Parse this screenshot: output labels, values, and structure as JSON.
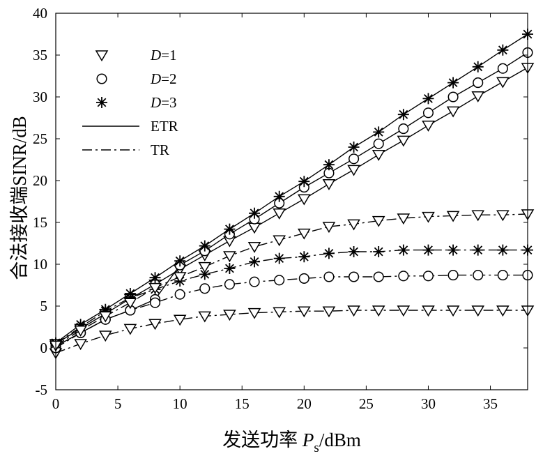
{
  "chart_data": {
    "type": "line",
    "xlabel": {
      "text": "发送功率 ",
      "var": "P",
      "sub": "s",
      "unit": "/dBm"
    },
    "ylabel": "合法接收端SINR/dB",
    "xlim": [
      0,
      38
    ],
    "ylim": [
      -5,
      40
    ],
    "xticks": [
      0,
      5,
      10,
      15,
      20,
      25,
      30,
      35
    ],
    "yticks": [
      -5,
      0,
      5,
      10,
      15,
      20,
      25,
      30,
      35,
      40
    ],
    "x": [
      0,
      2,
      4,
      6,
      8,
      10,
      12,
      14,
      16,
      18,
      20,
      22,
      24,
      26,
      28,
      30,
      32,
      34,
      36,
      38
    ],
    "legend": {
      "placement": "top-left",
      "entries": [
        {
          "var": "D",
          "rest": "=1",
          "marker": "triangle-down"
        },
        {
          "var": "D",
          "rest": "=2",
          "marker": "circle"
        },
        {
          "var": "D",
          "rest": "=3",
          "marker": "asterisk"
        },
        {
          "label": "ETR",
          "line": "solid"
        },
        {
          "label": "TR",
          "line": "dashdot"
        }
      ]
    },
    "series": [
      {
        "method": "ETR",
        "D": 1,
        "marker": "triangle-down",
        "line": "solid",
        "y": [
          0.5,
          2.3,
          4.1,
          5.9,
          7.6,
          9.4,
          11.1,
          12.8,
          14.4,
          16.1,
          17.8,
          19.6,
          21.3,
          23.1,
          24.8,
          26.6,
          28.3,
          30.1,
          31.8,
          33.5
        ]
      },
      {
        "method": "ETR",
        "D": 2,
        "marker": "circle",
        "line": "solid",
        "y": [
          0.2,
          1.8,
          3.4,
          4.5,
          5.8,
          9.9,
          11.6,
          13.6,
          15.4,
          17.3,
          19.2,
          20.9,
          22.6,
          24.4,
          26.2,
          28.1,
          30.0,
          31.7,
          33.4,
          35.3
        ]
      },
      {
        "method": "ETR",
        "D": 3,
        "marker": "asterisk",
        "line": "solid",
        "y": [
          0.6,
          2.8,
          4.6,
          6.5,
          8.4,
          10.4,
          12.2,
          14.2,
          16.1,
          18.1,
          19.9,
          21.9,
          24.0,
          25.8,
          27.9,
          29.8,
          31.7,
          33.6,
          35.6,
          37.5
        ]
      },
      {
        "method": "TR",
        "D": 1,
        "marker": "triangle-down",
        "line": "dashdot",
        "y": [
          -0.6,
          0.5,
          1.5,
          2.3,
          2.9,
          3.4,
          3.8,
          4.0,
          4.2,
          4.3,
          4.4,
          4.4,
          4.5,
          4.5,
          4.5,
          4.5,
          4.5,
          4.5,
          4.5,
          4.5
        ]
      },
      {
        "method": "TR",
        "D": 2,
        "marker": "circle",
        "line": "dashdot",
        "y": [
          0.0,
          1.8,
          3.4,
          4.5,
          5.4,
          6.4,
          7.1,
          7.6,
          7.9,
          8.1,
          8.3,
          8.5,
          8.5,
          8.5,
          8.6,
          8.6,
          8.7,
          8.7,
          8.7,
          8.7
        ]
      },
      {
        "method": "TR",
        "D": 3,
        "marker": "asterisk",
        "line": "dashdot",
        "y": [
          0.5,
          2.5,
          4.4,
          6.0,
          7.0,
          8.0,
          8.8,
          9.5,
          10.3,
          10.7,
          10.9,
          11.3,
          11.5,
          11.5,
          11.7,
          11.7,
          11.7,
          11.7,
          11.7,
          11.7
        ]
      },
      {
        "method": "TR",
        "D": 1,
        "marker": "triangle-down",
        "line": "dashdot",
        "curve": "upper",
        "y": [
          0.3,
          2.1,
          3.8,
          5.4,
          7.2,
          8.5,
          9.7,
          11.0,
          12.1,
          12.9,
          13.7,
          14.5,
          14.8,
          15.2,
          15.5,
          15.7,
          15.8,
          15.9,
          15.9,
          16.0
        ]
      }
    ],
    "grid": false
  }
}
